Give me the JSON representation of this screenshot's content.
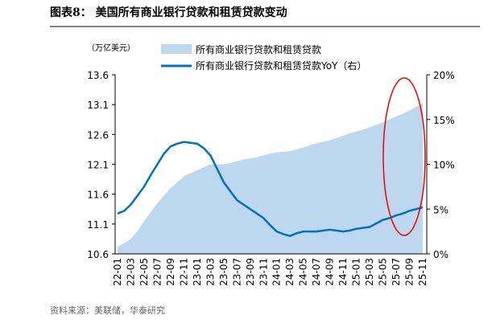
{
  "title": "图表8： 美国所有商业银行贷款和租赁贷款变动",
  "source": "资料来源：美联储，华泰研究",
  "chart_data": {
    "type": "area_line",
    "y_unit": "（万亿美元）",
    "categories": [
      "22-01",
      null,
      "22-03",
      null,
      "22-05",
      null,
      "22-07",
      null,
      "22-09",
      null,
      "22-11",
      null,
      "23-01",
      null,
      "23-03",
      null,
      "23-05",
      null,
      "23-07",
      null,
      "23-09",
      null,
      "23-11",
      null,
      "24-01",
      null,
      "24-03",
      null,
      "24-05",
      null,
      "24-07",
      null,
      "24-09",
      null,
      "24-11",
      null,
      "25-01",
      null,
      "25-03",
      null,
      "25-05",
      null,
      "25-07",
      null,
      "25-09",
      null,
      "25-11"
    ],
    "series": [
      {
        "name": "所有商业银行贷款和租赁贷款",
        "color": "#bdd7ee",
        "axis": "y",
        "values": [
          10.72,
          10.78,
          10.85,
          10.98,
          11.15,
          11.3,
          11.45,
          11.58,
          11.7,
          11.8,
          11.9,
          11.95,
          12.0,
          12.05,
          12.1,
          12.1,
          12.1,
          12.12,
          12.15,
          12.18,
          12.2,
          12.22,
          12.25,
          12.28,
          12.3,
          12.31,
          12.32,
          12.35,
          12.38,
          12.42,
          12.45,
          12.48,
          12.5,
          12.54,
          12.58,
          12.62,
          12.65,
          12.68,
          12.72,
          12.76,
          12.8,
          12.85,
          12.9,
          12.95,
          13.0,
          13.06,
          13.12
        ]
      },
      {
        "name": "所有商业银行贷款和租赁贷款YoY（右）",
        "color": "#0070c0",
        "axis": "y2",
        "values": [
          4.5,
          4.8,
          5.5,
          6.5,
          7.5,
          8.8,
          10,
          11.2,
          12,
          12.3,
          12.5,
          12.4,
          12.3,
          11.8,
          11,
          9.5,
          8,
          7,
          6,
          5.5,
          5,
          4.5,
          4,
          3.2,
          2.5,
          2.2,
          2,
          2.3,
          2.5,
          2.5,
          2.5,
          2.6,
          2.7,
          2.6,
          2.5,
          2.6,
          2.8,
          2.9,
          3,
          3.4,
          3.8,
          4,
          4.3,
          4.5,
          4.8,
          5,
          5.2
        ]
      }
    ],
    "ylim": [
      10.6,
      13.6
    ],
    "yticks": [
      10.6,
      11.1,
      11.6,
      12.1,
      12.6,
      13.1,
      13.6
    ],
    "y2lim": [
      0,
      20
    ],
    "y2ticks": [
      {
        "value": 0,
        "label": "0%"
      },
      {
        "value": 5,
        "label": "5%"
      },
      {
        "value": 10,
        "label": "10%"
      },
      {
        "value": 15,
        "label": "15%"
      },
      {
        "value": 20,
        "label": "20%"
      }
    ],
    "legend": "top"
  }
}
